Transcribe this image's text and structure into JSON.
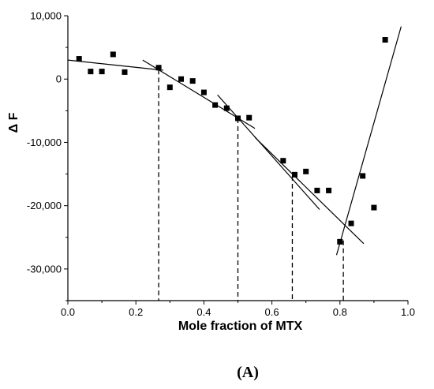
{
  "chart_data": {
    "type": "scatter",
    "xlabel": "Mole fraction of MTX",
    "ylabel": "Δ F",
    "panel_label": "(A)",
    "xlim": [
      0.0,
      1.0
    ],
    "ylim": [
      -35000,
      10000
    ],
    "x_ticks": [
      0.0,
      0.2,
      0.4,
      0.6,
      0.8,
      1.0
    ],
    "x_tick_labels": [
      "0.0",
      "0.2",
      "0.4",
      "0.6",
      "0.8",
      "1.0"
    ],
    "y_ticks": [
      10000,
      0,
      -10000,
      -20000,
      -30000
    ],
    "y_tick_labels": [
      "10,000",
      "0",
      "-10,000",
      "-20,000",
      "-30,000"
    ],
    "points": [
      {
        "x": 0.033,
        "y": 3200
      },
      {
        "x": 0.067,
        "y": 1200
      },
      {
        "x": 0.1,
        "y": 1200
      },
      {
        "x": 0.133,
        "y": 3900
      },
      {
        "x": 0.167,
        "y": 1100
      },
      {
        "x": 0.267,
        "y": 1800
      },
      {
        "x": 0.3,
        "y": -1300
      },
      {
        "x": 0.333,
        "y": 0
      },
      {
        "x": 0.367,
        "y": -300
      },
      {
        "x": 0.4,
        "y": -2100
      },
      {
        "x": 0.433,
        "y": -4100
      },
      {
        "x": 0.467,
        "y": -4600
      },
      {
        "x": 0.5,
        "y": -6200
      },
      {
        "x": 0.533,
        "y": -6100
      },
      {
        "x": 0.633,
        "y": -12900
      },
      {
        "x": 0.667,
        "y": -15100
      },
      {
        "x": 0.7,
        "y": -14600
      },
      {
        "x": 0.733,
        "y": -17600
      },
      {
        "x": 0.767,
        "y": -17600
      },
      {
        "x": 0.8,
        "y": -25700
      },
      {
        "x": 0.833,
        "y": -22800
      },
      {
        "x": 0.867,
        "y": -15300
      },
      {
        "x": 0.9,
        "y": -20300
      },
      {
        "x": 0.933,
        "y": 6200
      }
    ],
    "fit_lines": [
      {
        "x1": 0.0,
        "y1": 3000,
        "x2": 0.28,
        "y2": 1400
      },
      {
        "x1": 0.22,
        "y1": 3000,
        "x2": 0.55,
        "y2": -7800
      },
      {
        "x1": 0.44,
        "y1": -2500,
        "x2": 0.74,
        "y2": -20600
      },
      {
        "x1": 0.55,
        "y1": -9200,
        "x2": 0.87,
        "y2": -26000
      },
      {
        "x1": 0.79,
        "y1": -27800,
        "x2": 0.98,
        "y2": 8300
      }
    ],
    "dashed_drops": [
      {
        "x": 0.267,
        "y_top": 1500
      },
      {
        "x": 0.5,
        "y_top": -6200
      },
      {
        "x": 0.66,
        "y_top": -15300
      },
      {
        "x": 0.81,
        "y_top": -25500
      }
    ]
  }
}
